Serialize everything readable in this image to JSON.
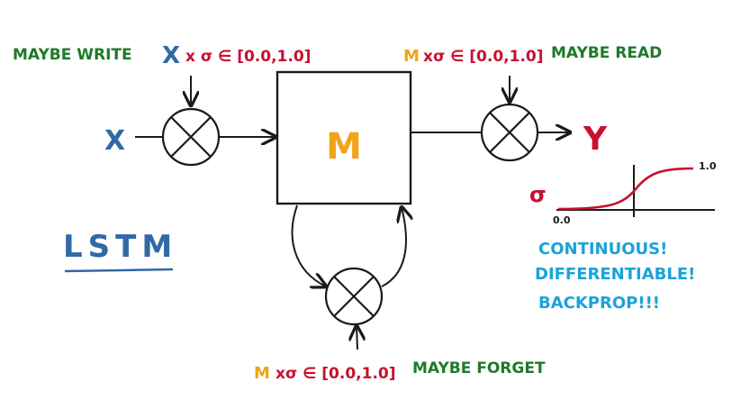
{
  "labels": {
    "write_prefix": "MAYBE WRITE",
    "write_x": "X",
    "write_sigma": "x σ ∈ [0.0,1.0]",
    "read_m": "M",
    "read_sigma": "xσ ∈ [0.0,1.0]",
    "read_suffix": "MAYBE READ",
    "input_x": "X",
    "memory": "M",
    "output_y": "Y",
    "title": "LSTM",
    "sigma_symbol": "σ",
    "sigma_low": "0.0",
    "sigma_high": "1.0",
    "note_line1": "CONTINUOUS!",
    "note_line2": "DIFFERENTIABLE!",
    "note_line3": "BACKPROP!!!",
    "forget_m": "M",
    "forget_sigma": "xσ ∈ [0.0,1.0]",
    "forget_suffix": "MAYBE FORGET"
  },
  "colors": {
    "green": "#1f7a2a",
    "blue": "#2f6aa6",
    "red": "#c8102e",
    "orange": "#f2a31a",
    "cyan": "#1aa3d9",
    "ink": "#1a1a1a"
  },
  "gates": [
    {
      "name": "write-gate",
      "icon": "multiply-gate-icon"
    },
    {
      "name": "read-gate",
      "icon": "multiply-gate-icon"
    },
    {
      "name": "forget-gate",
      "icon": "multiply-gate-icon"
    }
  ]
}
